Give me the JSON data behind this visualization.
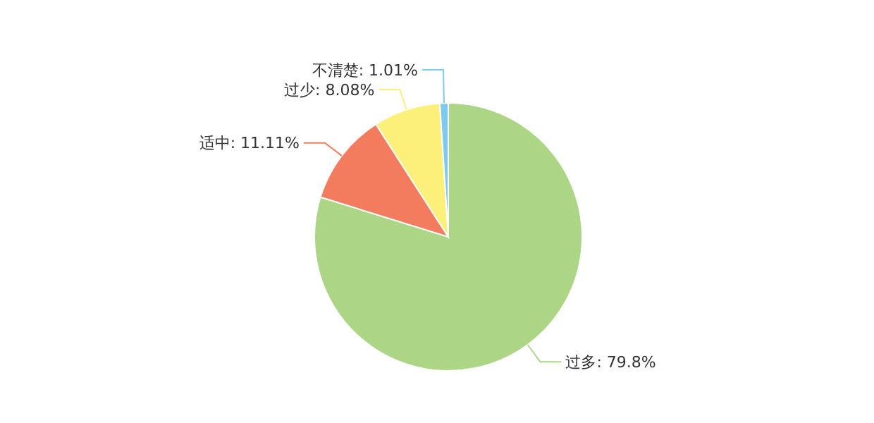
{
  "chart_data": {
    "type": "pie",
    "categories": [
      "过多",
      "适中",
      "过少",
      "不清楚"
    ],
    "values": [
      79.8,
      11.11,
      8.08,
      1.01
    ],
    "value_labels": [
      "79.8%",
      "11.11%",
      "8.08%",
      "1.01%"
    ],
    "colors": [
      "#acd685",
      "#f47c5e",
      "#fdf07a",
      "#7ccaef"
    ],
    "legend": false
  }
}
